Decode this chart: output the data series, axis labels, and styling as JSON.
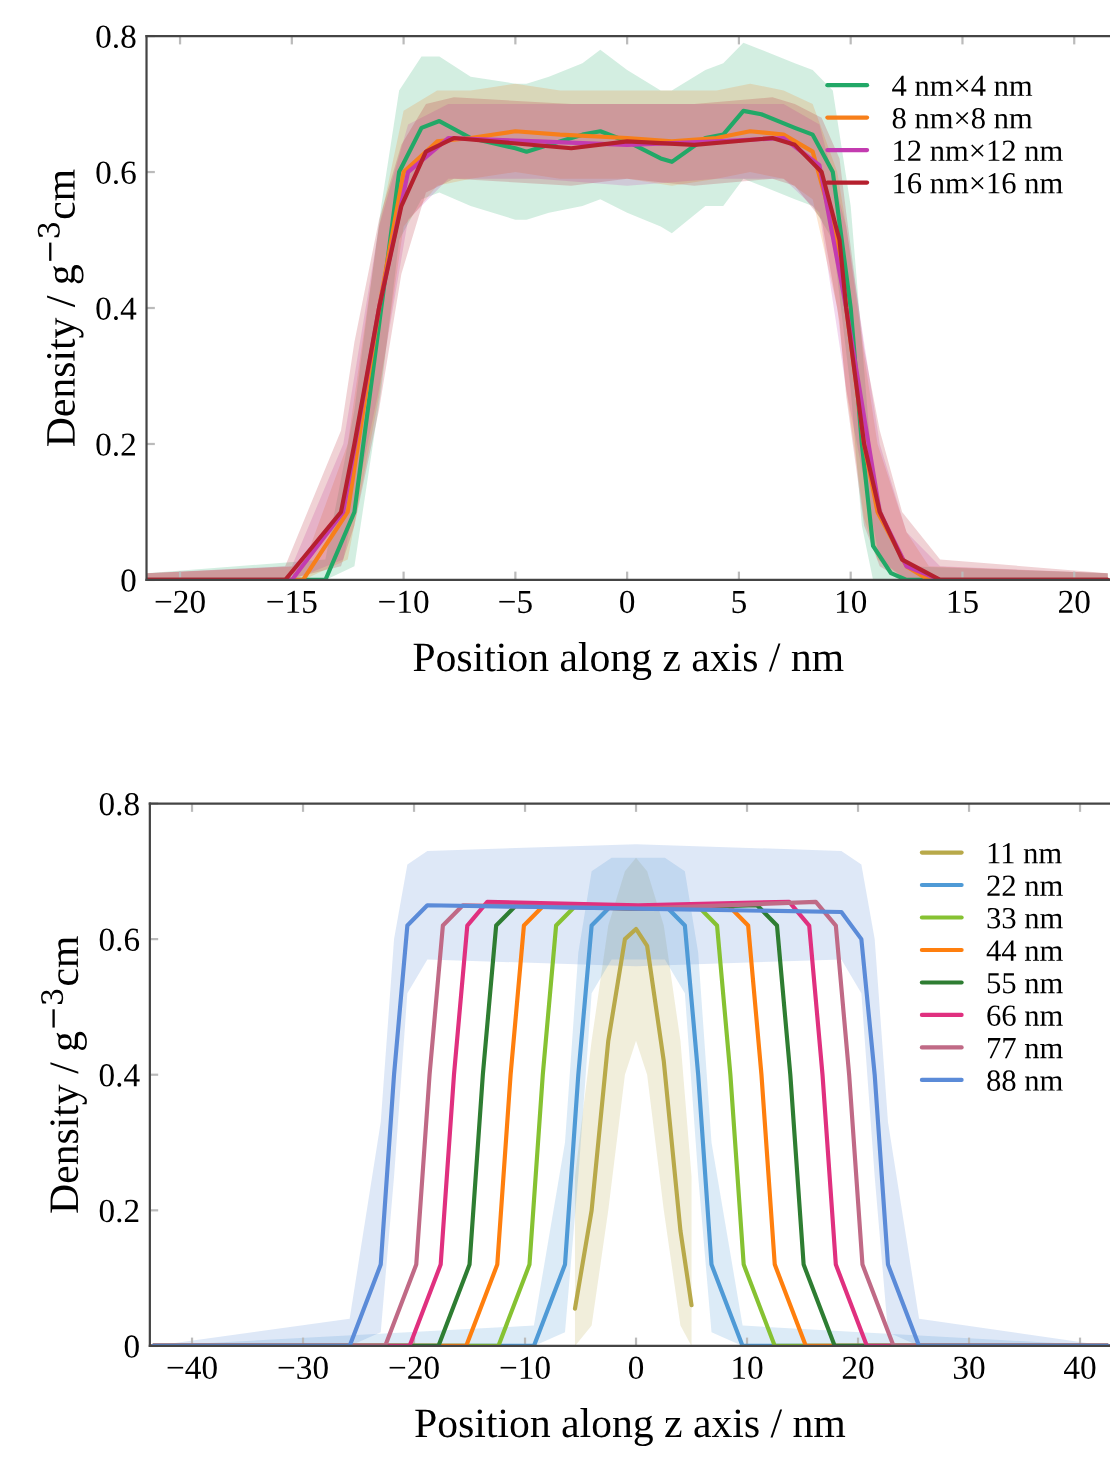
{
  "chart_data": [
    {
      "type": "line",
      "xlabel": "Position along z axis / nm",
      "ylabel": "Density / g$^{−3}$cm",
      "xlim": [
        -21.5,
        21.6
      ],
      "ylim": [
        0,
        0.8
      ],
      "xticks": [
        {
          "value": -20,
          "label": "−20"
        },
        {
          "value": -15,
          "label": "−15"
        },
        {
          "value": -10,
          "label": "−10"
        },
        {
          "value": -5,
          "label": "−5"
        },
        0,
        5,
        10,
        15,
        20
      ],
      "yticks": [
        0,
        0.2,
        0.4,
        0.6,
        0.8
      ],
      "grid": false,
      "legend": "top right",
      "series": [
        {
          "name": "4 nm×4 nm",
          "color": "#22a867",
          "x": [
            -21.5,
            -13.5,
            -12.2,
            -11.0,
            -10.2,
            -9.2,
            -8.4,
            -7,
            -5,
            -4.5,
            -3.5,
            -2,
            -1.2,
            0,
            1.5,
            2,
            3.5,
            4.3,
            5.2,
            6,
            7.5,
            8.3,
            9.2,
            10.0,
            10.5,
            11.0,
            11.8,
            12.5,
            21.5
          ],
          "values": [
            0,
            0,
            0.1,
            0.4,
            0.6,
            0.665,
            0.675,
            0.65,
            0.635,
            0.63,
            0.64,
            0.655,
            0.66,
            0.645,
            0.62,
            0.615,
            0.65,
            0.655,
            0.69,
            0.685,
            0.665,
            0.655,
            0.6,
            0.4,
            0.2,
            0.05,
            0.01,
            0,
            0
          ],
          "lower": [
            0,
            0,
            0.02,
            0.28,
            0.5,
            0.56,
            0.57,
            0.55,
            0.53,
            0.53,
            0.54,
            0.55,
            0.56,
            0.54,
            0.52,
            0.51,
            0.55,
            0.55,
            0.59,
            0.58,
            0.56,
            0.55,
            0.5,
            0.28,
            0.08,
            0,
            0,
            0,
            0
          ],
          "upper": [
            0.01,
            0.03,
            0.25,
            0.55,
            0.72,
            0.77,
            0.77,
            0.74,
            0.73,
            0.73,
            0.74,
            0.76,
            0.78,
            0.75,
            0.72,
            0.72,
            0.75,
            0.76,
            0.79,
            0.78,
            0.76,
            0.75,
            0.72,
            0.55,
            0.35,
            0.15,
            0.06,
            0.02,
            0.01
          ]
        },
        {
          "name": "8 nm×8 nm",
          "color": "#f77f1a",
          "x": [
            -21.5,
            -14.5,
            -12.5,
            -11.1,
            -10.0,
            -8.5,
            -7,
            -5,
            -3,
            0,
            2,
            4,
            5.5,
            7,
            8.3,
            9.4,
            9.8,
            10.6,
            11.2,
            12.5,
            13.5,
            21.5
          ],
          "values": [
            0,
            0,
            0.1,
            0.4,
            0.6,
            0.645,
            0.65,
            0.66,
            0.655,
            0.65,
            0.645,
            0.65,
            0.66,
            0.655,
            0.63,
            0.5,
            0.4,
            0.2,
            0.1,
            0.02,
            0,
            0
          ],
          "lower": [
            0,
            0,
            0.03,
            0.27,
            0.52,
            0.58,
            0.59,
            0.6,
            0.59,
            0.59,
            0.58,
            0.59,
            0.6,
            0.59,
            0.56,
            0.4,
            0.28,
            0.09,
            0.03,
            0,
            0,
            0
          ],
          "upper": [
            0.01,
            0.02,
            0.2,
            0.52,
            0.69,
            0.72,
            0.72,
            0.73,
            0.72,
            0.72,
            0.72,
            0.72,
            0.73,
            0.72,
            0.7,
            0.6,
            0.52,
            0.33,
            0.2,
            0.07,
            0.02,
            0.01
          ]
        },
        {
          "name": "12 nm×12 nm",
          "color": "#c33bb0",
          "x": [
            -21.5,
            -15,
            -12.7,
            -11.1,
            -9.8,
            -8,
            -4,
            0,
            4,
            7,
            8.6,
            9.8,
            11.3,
            12.5,
            14,
            21.5
          ],
          "values": [
            0,
            0,
            0.1,
            0.4,
            0.6,
            0.65,
            0.645,
            0.64,
            0.645,
            0.65,
            0.61,
            0.4,
            0.1,
            0.02,
            0,
            0
          ],
          "lower": [
            0,
            0,
            0.03,
            0.28,
            0.53,
            0.59,
            0.59,
            0.58,
            0.59,
            0.59,
            0.54,
            0.28,
            0.03,
            0,
            0,
            0
          ],
          "upper": [
            0.01,
            0.02,
            0.2,
            0.52,
            0.67,
            0.7,
            0.7,
            0.7,
            0.7,
            0.7,
            0.67,
            0.52,
            0.2,
            0.07,
            0.02,
            0.01
          ]
        },
        {
          "name": "16 nm×16 nm",
          "color": "#b5202e",
          "x": [
            -21.5,
            -15.3,
            -12.8,
            -12.2,
            -11.1,
            -10.1,
            -9.0,
            -7.75,
            -2.5,
            0,
            3,
            6.5,
            7.5,
            8.7,
            9.5,
            9.8,
            10.6,
            11.3,
            12.3,
            14,
            21.5
          ],
          "values": [
            0,
            0,
            0.1,
            0.2,
            0.4,
            0.55,
            0.63,
            0.65,
            0.635,
            0.645,
            0.64,
            0.65,
            0.64,
            0.6,
            0.5,
            0.4,
            0.2,
            0.1,
            0.03,
            0,
            0
          ],
          "lower": [
            0,
            0,
            0.02,
            0.08,
            0.25,
            0.45,
            0.57,
            0.59,
            0.58,
            0.59,
            0.58,
            0.59,
            0.58,
            0.53,
            0.38,
            0.27,
            0.08,
            0.02,
            0,
            0,
            0
          ],
          "upper": [
            0.01,
            0.02,
            0.22,
            0.35,
            0.53,
            0.64,
            0.7,
            0.71,
            0.7,
            0.7,
            0.7,
            0.71,
            0.7,
            0.68,
            0.62,
            0.54,
            0.34,
            0.22,
            0.1,
            0.03,
            0.01
          ]
        }
      ]
    },
    {
      "type": "line",
      "xlabel": "Position along z axis / nm",
      "ylabel": "Density / g$^{−3}$cm",
      "xlim": [
        -43.8,
        42.7
      ],
      "ylim": [
        0,
        0.8
      ],
      "xticks": [
        {
          "value": -40,
          "label": "−40"
        },
        {
          "value": -30,
          "label": "−30"
        },
        {
          "value": -20,
          "label": "−20"
        },
        {
          "value": -10,
          "label": "−10"
        },
        0,
        10,
        20,
        30,
        40
      ],
      "yticks": [
        0,
        0.2,
        0.4,
        0.6,
        0.8
      ],
      "grid": false,
      "legend": "top right",
      "series": [
        {
          "name": "11 nm",
          "color": "#b8a94a",
          "x": [
            -5.5,
            -4,
            -2.5,
            -1,
            0,
            1,
            2.5,
            4,
            5
          ],
          "values": [
            0.055,
            0.2,
            0.45,
            0.6,
            0.615,
            0.59,
            0.42,
            0.17,
            0.06
          ],
          "lower": [
            0,
            0.03,
            0.2,
            0.4,
            0.45,
            0.4,
            0.2,
            0.03,
            0
          ],
          "upper": [
            0.25,
            0.45,
            0.62,
            0.7,
            0.72,
            0.7,
            0.62,
            0.45,
            0.25
          ]
        },
        {
          "name": "22 nm",
          "color": "#4f9ad6",
          "x": [
            -43.5,
            -9.2,
            -6.4,
            -5.2,
            -4,
            -2.2,
            0.2,
            2.6,
            4.4,
            5.6,
            6.8,
            9.6,
            42.5
          ],
          "values": [
            0,
            0,
            0.12,
            0.4,
            0.62,
            0.65,
            0.645,
            0.65,
            0.62,
            0.4,
            0.12,
            0,
            0
          ],
          "lower": [
            0,
            0,
            0.02,
            0.25,
            0.52,
            0.57,
            0.57,
            0.57,
            0.52,
            0.25,
            0.02,
            0,
            0
          ],
          "upper": [
            0,
            0.03,
            0.3,
            0.58,
            0.7,
            0.72,
            0.72,
            0.72,
            0.7,
            0.58,
            0.3,
            0.03,
            0
          ]
        },
        {
          "name": "33 nm",
          "color": "#86c232",
          "x": [
            -43.5,
            -12.4,
            -9.6,
            -8.4,
            -7.2,
            -5.4,
            0,
            5.5,
            7.3,
            8.5,
            9.7,
            12.5,
            42.5
          ],
          "values": [
            0,
            0,
            0.12,
            0.4,
            0.62,
            0.65,
            0.645,
            0.65,
            0.62,
            0.4,
            0.12,
            0,
            0
          ]
        },
        {
          "name": "44 nm",
          "color": "#ff7f0e",
          "x": [
            -43.5,
            -15.3,
            -12.5,
            -11.3,
            -10.1,
            -8.3,
            0,
            8.3,
            10.1,
            11.3,
            12.5,
            15.3,
            42.5
          ],
          "values": [
            0,
            0,
            0.12,
            0.4,
            0.62,
            0.65,
            0.645,
            0.65,
            0.62,
            0.4,
            0.12,
            0,
            0
          ]
        },
        {
          "name": "55 nm",
          "color": "#2e7d32",
          "x": [
            -43.5,
            -17.8,
            -15,
            -13.8,
            -12.6,
            -10.8,
            0,
            10.9,
            12.7,
            13.9,
            15.1,
            17.9,
            42.5
          ],
          "values": [
            0,
            0,
            0.12,
            0.4,
            0.62,
            0.65,
            0.645,
            0.65,
            0.62,
            0.4,
            0.12,
            0,
            0
          ]
        },
        {
          "name": "66 nm",
          "color": "#e0307f",
          "x": [
            -43.5,
            -20.4,
            -17.6,
            -16.4,
            -15.2,
            -13.4,
            0.2,
            13.8,
            15.6,
            16.8,
            18,
            20.8,
            42.5
          ],
          "values": [
            0,
            0,
            0.12,
            0.4,
            0.62,
            0.655,
            0.65,
            0.655,
            0.62,
            0.4,
            0.12,
            0,
            0
          ]
        },
        {
          "name": "77 nm",
          "color": "#c06a86",
          "x": [
            -43.5,
            -22.6,
            -19.8,
            -18.6,
            -17.4,
            -15.6,
            0.3,
            16.2,
            18,
            19.2,
            20.4,
            23.2,
            42.5
          ],
          "values": [
            0,
            0,
            0.12,
            0.4,
            0.62,
            0.65,
            0.645,
            0.655,
            0.62,
            0.4,
            0.12,
            0,
            0
          ]
        },
        {
          "name": "88 nm",
          "color": "#5b8bd8",
          "x": [
            -43.5,
            -25.8,
            -23,
            -21.8,
            -20.6,
            -18.8,
            0,
            18.5,
            20.3,
            21.5,
            22.7,
            25.5,
            42.5
          ],
          "values": [
            0,
            0,
            0.12,
            0.4,
            0.62,
            0.65,
            0.645,
            0.64,
            0.6,
            0.4,
            0.12,
            0,
            0
          ],
          "lower": [
            0,
            0,
            0.02,
            0.25,
            0.52,
            0.57,
            0.56,
            0.57,
            0.52,
            0.25,
            0.02,
            0,
            0
          ],
          "upper": [
            0,
            0.04,
            0.33,
            0.6,
            0.71,
            0.73,
            0.74,
            0.73,
            0.71,
            0.6,
            0.33,
            0.04,
            0
          ]
        }
      ]
    }
  ]
}
